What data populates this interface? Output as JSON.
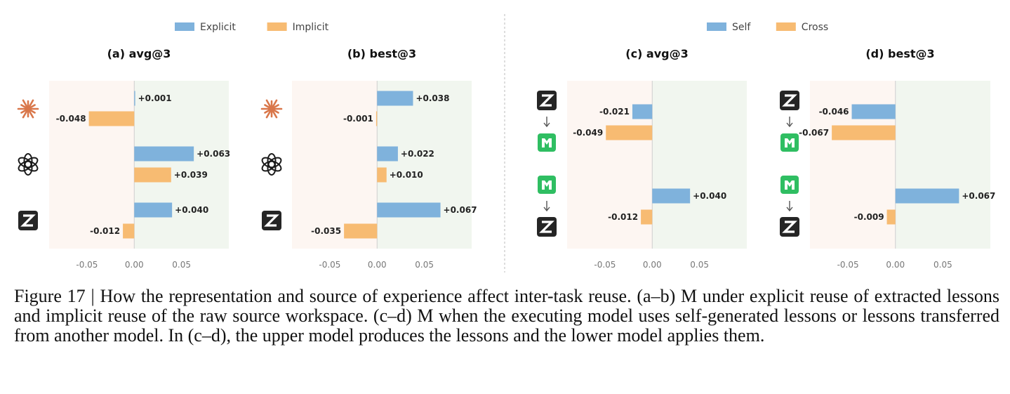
{
  "colors": {
    "blue": "#7fb2dc",
    "orange": "#f7bb72",
    "neg_bg": "#fdf6f2",
    "pos_bg": "#f1f6ef",
    "claude": "#d9774a",
    "dark": "#252525",
    "green": "#2fbe62"
  },
  "legends": [
    {
      "items": [
        {
          "label": "Explicit",
          "color": "#7fb2dc"
        },
        {
          "label": "Implicit",
          "color": "#f7bb72"
        }
      ]
    },
    {
      "items": [
        {
          "label": "Self",
          "color": "#7fb2dc"
        },
        {
          "label": "Cross",
          "color": "#f7bb72"
        }
      ]
    }
  ],
  "chart_data": [
    {
      "type": "bar",
      "orientation": "horizontal",
      "title": "(a) avg@3",
      "xlim": [
        -0.09,
        0.1
      ],
      "xticks": [
        "-0.05",
        "0.00",
        "0.05"
      ],
      "groups": [
        {
          "icon": "claude-icon",
          "values": [
            0.001,
            -0.048
          ],
          "labels": [
            "+0.001",
            "-0.048"
          ]
        },
        {
          "icon": "openai-icon",
          "values": [
            0.063,
            0.039
          ],
          "labels": [
            "+0.063",
            "+0.039"
          ]
        },
        {
          "icon": "zhipu-icon",
          "values": [
            0.04,
            -0.012
          ],
          "labels": [
            "+0.040",
            "-0.012"
          ]
        }
      ],
      "series": [
        {
          "name": "Explicit"
        },
        {
          "name": "Implicit"
        }
      ]
    },
    {
      "type": "bar",
      "orientation": "horizontal",
      "title": "(b) best@3",
      "xlim": [
        -0.09,
        0.1
      ],
      "xticks": [
        "-0.05",
        "0.00",
        "0.05"
      ],
      "groups": [
        {
          "icon": "claude-icon",
          "values": [
            0.038,
            -0.001
          ],
          "labels": [
            "+0.038",
            "-0.001"
          ]
        },
        {
          "icon": "openai-icon",
          "values": [
            0.022,
            0.01
          ],
          "labels": [
            "+0.022",
            "+0.010"
          ]
        },
        {
          "icon": "zhipu-icon",
          "values": [
            0.067,
            -0.035
          ],
          "labels": [
            "+0.067",
            "-0.035"
          ]
        }
      ],
      "series": [
        {
          "name": "Explicit"
        },
        {
          "name": "Implicit"
        }
      ]
    },
    {
      "type": "bar",
      "orientation": "horizontal",
      "title": "(c) avg@3",
      "xlim": [
        -0.09,
        0.1
      ],
      "xticks": [
        "-0.05",
        "0.00",
        "0.05"
      ],
      "groups": [
        {
          "icon": "zhipu-to-minimax-icon",
          "values": [
            -0.021,
            -0.049
          ],
          "labels": [
            "-0.021",
            "-0.049"
          ]
        },
        {
          "icon": "minimax-to-zhipu-icon",
          "values": [
            0.04,
            -0.012
          ],
          "labels": [
            "+0.040",
            "-0.012"
          ]
        }
      ],
      "series": [
        {
          "name": "Self"
        },
        {
          "name": "Cross"
        }
      ]
    },
    {
      "type": "bar",
      "orientation": "horizontal",
      "title": "(d) best@3",
      "xlim": [
        -0.09,
        0.1
      ],
      "xticks": [
        "-0.05",
        "0.00",
        "0.05"
      ],
      "groups": [
        {
          "icon": "zhipu-to-minimax-icon",
          "values": [
            -0.046,
            -0.067
          ],
          "labels": [
            "-0.046",
            "-0.067"
          ]
        },
        {
          "icon": "minimax-to-zhipu-icon",
          "values": [
            0.067,
            -0.009
          ],
          "labels": [
            "+0.067",
            "-0.009"
          ]
        }
      ],
      "series": [
        {
          "name": "Self"
        },
        {
          "name": "Cross"
        }
      ]
    }
  ],
  "caption": "Figure 17 | How the representation and source of experience affect inter-task reuse. (a–b) M under explicit reuse of extracted lessons and implicit reuse of the raw source workspace. (c–d) M when the executing model uses self-generated lessons or lessons transferred from another model. In (c–d), the upper model produces the lessons and the lower model applies them."
}
